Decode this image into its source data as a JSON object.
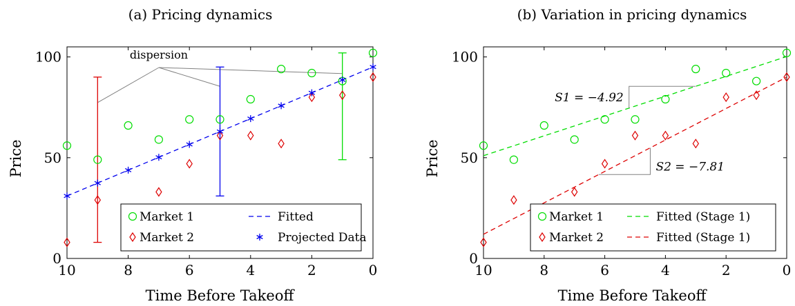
{
  "chart_data": [
    {
      "type": "scatter",
      "title": "(a) Pricing dynamics",
      "xlabel": "Time Before Takeoff",
      "ylabel": "Price",
      "xlim": [
        10,
        0
      ],
      "ylim": [
        0,
        105
      ],
      "xticks": [
        "10",
        "8",
        "6",
        "4",
        "2",
        "0"
      ],
      "yticks": [
        "0",
        "50",
        "100"
      ],
      "grid": false,
      "legend_position": "bottom-right",
      "annotation": "dispersion",
      "colors": {
        "market1": "#00dd00",
        "market2": "#dd0000",
        "fitted": "#0000ee",
        "annotation": "#808080"
      },
      "series": [
        {
          "name": "Market 1",
          "marker": "circle",
          "x": [
            10,
            9,
            8,
            7,
            6,
            5,
            4,
            3,
            2,
            1,
            0
          ],
          "y": [
            56,
            49,
            66,
            59,
            69,
            69,
            79,
            94,
            92,
            88,
            102
          ]
        },
        {
          "name": "Market 2",
          "marker": "diamond",
          "x": [
            10,
            9,
            7,
            6,
            5,
            4,
            3,
            2,
            1,
            0
          ],
          "y": [
            8,
            29,
            33,
            47,
            61,
            61,
            57,
            80,
            81,
            90
          ]
        },
        {
          "name": "Fitted",
          "style": "dashed-line",
          "x": [
            10,
            0
          ],
          "y": [
            31,
            95
          ]
        },
        {
          "name": "Projected Data",
          "marker": "asterisk",
          "x": [
            10,
            9,
            8,
            7,
            6,
            5,
            4,
            3,
            2,
            1,
            0
          ],
          "y": [
            31,
            37.4,
            43.8,
            50.2,
            56.6,
            63,
            69.4,
            75.8,
            82.2,
            88.6,
            95
          ]
        }
      ],
      "error_bars": [
        {
          "x": 9,
          "low": 8,
          "high": 90,
          "color": "#dd0000"
        },
        {
          "x": 5,
          "low": 31,
          "high": 95,
          "color": "#0000ee"
        },
        {
          "x": 1,
          "low": 49,
          "high": 102,
          "color": "#00dd00"
        }
      ]
    },
    {
      "type": "scatter",
      "title": "(b) Variation in pricing dynamics",
      "xlabel": "Time Before Takeoff",
      "ylabel": "Price",
      "xlim": [
        10,
        0
      ],
      "ylim": [
        0,
        105
      ],
      "xticks": [
        "10",
        "8",
        "6",
        "4",
        "2",
        "0"
      ],
      "yticks": [
        "0",
        "50",
        "100"
      ],
      "grid": false,
      "legend_position": "bottom-right",
      "annotations": [
        "S1 = −4.92",
        "S2 = −7.81"
      ],
      "colors": {
        "market1": "#00dd00",
        "market2": "#dd0000",
        "annotation": "#808080"
      },
      "series": [
        {
          "name": "Market 1",
          "marker": "circle",
          "x": [
            10,
            9,
            8,
            7,
            6,
            5,
            4,
            3,
            2,
            1,
            0
          ],
          "y": [
            56,
            49,
            66,
            59,
            69,
            69,
            79,
            94,
            92,
            88,
            102
          ]
        },
        {
          "name": "Market 2",
          "marker": "diamond",
          "x": [
            10,
            9,
            7,
            6,
            5,
            4,
            3,
            2,
            1,
            0
          ],
          "y": [
            8,
            29,
            33,
            47,
            61,
            61,
            57,
            80,
            81,
            90
          ]
        },
        {
          "name": "Fitted (Stage 1)",
          "style": "dashed-line",
          "color": "green",
          "x": [
            10,
            0
          ],
          "y": [
            51,
            100.2
          ]
        },
        {
          "name": "Fitted (Stage 1)",
          "style": "dashed-line",
          "color": "red",
          "x": [
            10,
            0
          ],
          "y": [
            12,
            90
          ]
        }
      ]
    }
  ]
}
